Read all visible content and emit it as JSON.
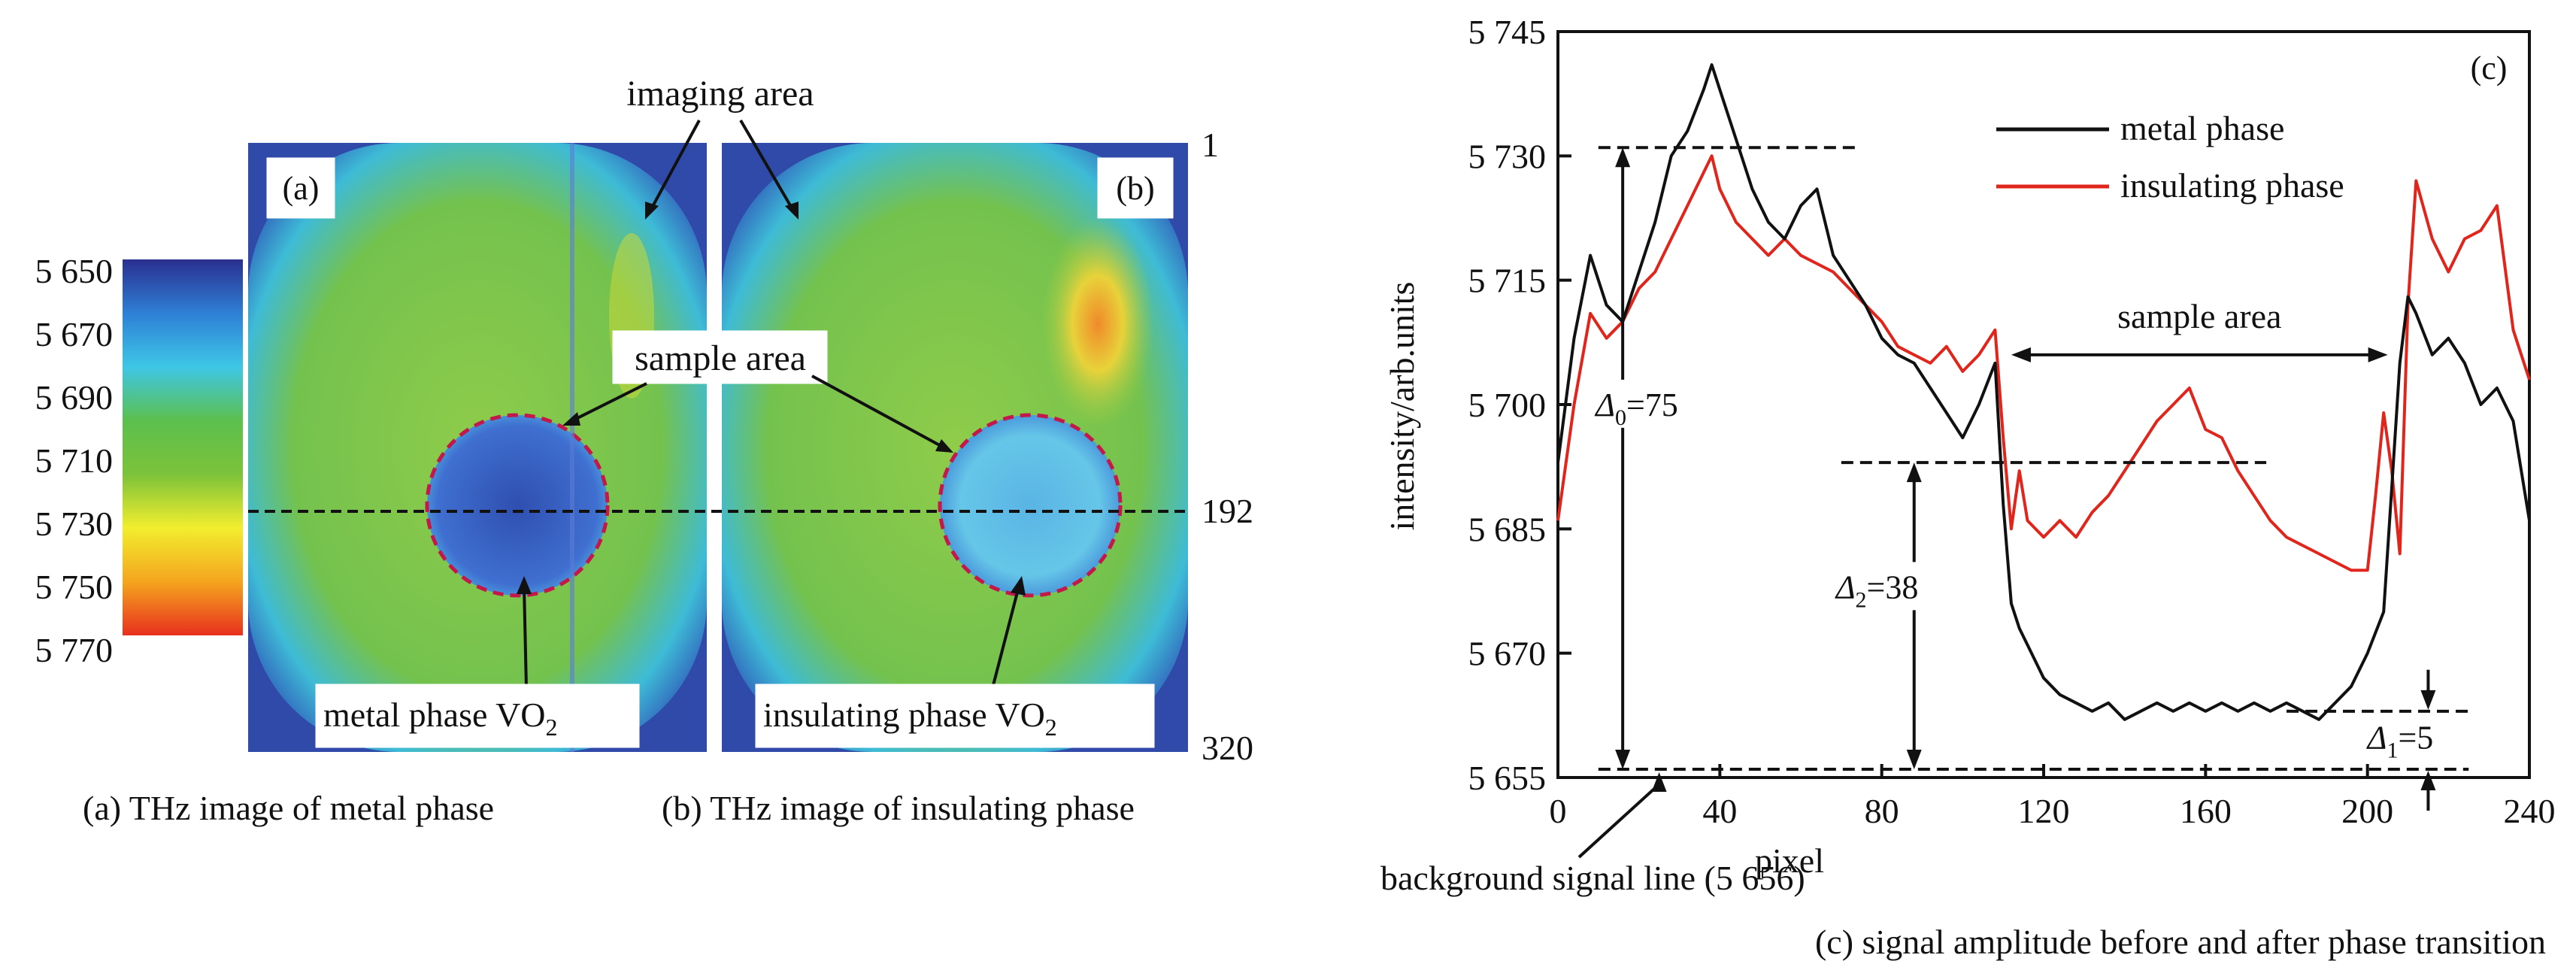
{
  "panel_a": {
    "label": "(a)",
    "caption": "(a) THz image of metal phase",
    "annotation_phase": "metal phase VO",
    "annotation_sub": "2"
  },
  "panel_b": {
    "label": "(b)",
    "caption": "(b) THz image of insulating phase",
    "annotation_phase": "insulating phase VO",
    "annotation_sub": "2"
  },
  "shared_annotations": {
    "imaging_area": "imaging area",
    "sample_area": "sample area"
  },
  "row_ticks": [
    "1",
    "192",
    "320"
  ],
  "colorbar": {
    "ticks": [
      "5 650",
      "5 670",
      "5 690",
      "5 710",
      "5 730",
      "5 750",
      "5 770"
    ],
    "colors": [
      "#2a2f8f",
      "#2e7fd6",
      "#3ec6e6",
      "#5cc04e",
      "#7cc23a",
      "#f2ee2e",
      "#f4a51e",
      "#e8301e"
    ]
  },
  "chart_data": {
    "type": "line",
    "panel_label": "(c)",
    "caption": "(c) signal amplitude before and after phase transition",
    "xlabel": "pixel",
    "ylabel": "intensity/arb.units",
    "xlim": [
      0,
      240
    ],
    "ylim": [
      5655,
      5745
    ],
    "xticks": [
      0,
      40,
      80,
      120,
      160,
      200,
      240
    ],
    "yticks": [
      5655,
      5670,
      5685,
      5700,
      5715,
      5730,
      5745
    ],
    "ytick_labels": [
      "5 655",
      "5 670",
      "5 685",
      "5 700",
      "5 715",
      "5 730",
      "5 745"
    ],
    "legend_position": "top-right",
    "series": [
      {
        "name": "metal phase",
        "color": "#111111",
        "x": [
          0,
          4,
          8,
          12,
          16,
          20,
          24,
          28,
          32,
          36,
          38,
          40,
          44,
          48,
          52,
          56,
          60,
          64,
          68,
          72,
          76,
          80,
          84,
          88,
          92,
          96,
          100,
          104,
          108,
          110,
          112,
          114,
          116,
          120,
          124,
          128,
          132,
          136,
          140,
          144,
          148,
          152,
          156,
          160,
          164,
          168,
          172,
          176,
          180,
          184,
          188,
          192,
          196,
          200,
          204,
          206,
          208,
          210,
          212,
          216,
          220,
          224,
          228,
          232,
          236,
          240
        ],
        "y": [
          5693,
          5708,
          5718,
          5712,
          5710,
          5716,
          5722,
          5730,
          5733,
          5738,
          5741,
          5738,
          5732,
          5726,
          5722,
          5720,
          5724,
          5726,
          5718,
          5715,
          5712,
          5708,
          5706,
          5705,
          5702,
          5699,
          5696,
          5700,
          5705,
          5688,
          5676,
          5673,
          5671,
          5667,
          5665,
          5664,
          5663,
          5664,
          5662,
          5663,
          5664,
          5663,
          5664,
          5663,
          5664,
          5663,
          5664,
          5663,
          5664,
          5663,
          5662,
          5664,
          5666,
          5670,
          5675,
          5690,
          5705,
          5713,
          5711,
          5706,
          5708,
          5705,
          5700,
          5702,
          5698,
          5686
        ]
      },
      {
        "name": "insulating phase",
        "color": "#e0261c",
        "x": [
          0,
          4,
          8,
          12,
          16,
          20,
          24,
          28,
          32,
          36,
          38,
          40,
          44,
          48,
          52,
          56,
          60,
          64,
          68,
          72,
          76,
          80,
          84,
          88,
          92,
          96,
          100,
          104,
          108,
          110,
          112,
          114,
          116,
          120,
          124,
          128,
          132,
          136,
          140,
          144,
          148,
          152,
          156,
          160,
          164,
          168,
          172,
          176,
          180,
          184,
          188,
          192,
          196,
          200,
          202,
          204,
          206,
          208,
          210,
          212,
          216,
          220,
          224,
          228,
          232,
          236,
          240
        ],
        "y": [
          5686,
          5700,
          5711,
          5708,
          5710,
          5714,
          5716,
          5720,
          5724,
          5728,
          5730,
          5726,
          5722,
          5720,
          5718,
          5720,
          5718,
          5717,
          5716,
          5714,
          5712,
          5710,
          5707,
          5706,
          5705,
          5707,
          5704,
          5706,
          5709,
          5696,
          5685,
          5692,
          5686,
          5684,
          5686,
          5684,
          5687,
          5689,
          5692,
          5695,
          5698,
          5700,
          5702,
          5697,
          5696,
          5692,
          5689,
          5686,
          5684,
          5683,
          5682,
          5681,
          5680,
          5680,
          5689,
          5699,
          5692,
          5682,
          5712,
          5727,
          5720,
          5716,
          5720,
          5721,
          5724,
          5709,
          5703
        ]
      }
    ],
    "annotations": {
      "sample_area": "sample area",
      "sample_area_range": [
        112,
        205
      ],
      "background": "background signal line (5 656)",
      "background_level": 5656,
      "delta0_label": "Δ",
      "delta0_sub": "0",
      "delta0_value": "=75",
      "delta0_level": 5731,
      "delta0_x": 16,
      "delta2_label": "Δ",
      "delta2_sub": "2",
      "delta2_value": "=38",
      "delta2_level": 5693,
      "delta2_x": 88,
      "delta1_label": "Δ",
      "delta1_sub": "1",
      "delta1_value": "=5",
      "delta1_level": 5661,
      "delta1_x": 215
    }
  }
}
